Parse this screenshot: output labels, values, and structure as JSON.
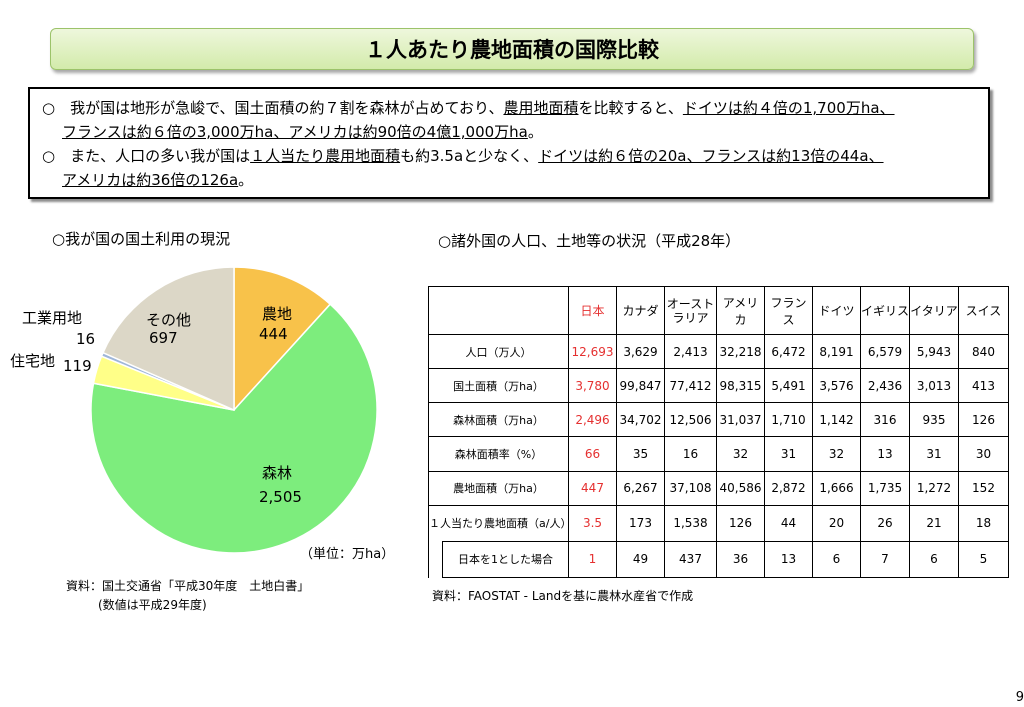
{
  "title": "１人あたり農地面積の国際比較",
  "summary": {
    "l1": {
      "a": "○　我が国は地形が急峻で、国土面積の約７割を森林が占めており、",
      "b": "農用地面積",
      "c": "を比較すると、",
      "d": "ドイツは約４倍の1,700万ha、"
    },
    "l2": {
      "a": "フランスは約６倍の3,000万ha、アメリカは約90倍の4億1,000万ha",
      "b": "。"
    },
    "l3": {
      "a": "○　また、人口の多い我が国は",
      "b": "１人当たり農用地面積",
      "c": "も約3.5aと少なく、",
      "d": "ドイツは約６倍の20a、フランスは約13倍の44a、"
    },
    "l4": {
      "a": "アメリカは約36倍の126a",
      "b": "。"
    }
  },
  "left": {
    "heading": "○我が国の国土利用の現況",
    "unit": "（単位：万ha）",
    "source1": "資料：国土交通省「平成30年度　土地白書」",
    "source2": "(数値は平成29年度)"
  },
  "chart_data": {
    "type": "pie",
    "unit": "万ha",
    "slices": [
      {
        "label": "農地",
        "value": 444,
        "color": "#f8c24a"
      },
      {
        "label": "森林",
        "value": 2505,
        "color": "#7ded7d"
      },
      {
        "label": "住宅地",
        "value": 119,
        "color": "#ffff88"
      },
      {
        "label": "工業用地",
        "value": 16,
        "color": "#9fb6d9"
      },
      {
        "label": "その他",
        "value": 697,
        "color": "#dcd7c7"
      }
    ],
    "labels": {
      "farm": "農地",
      "farm_v": "444",
      "forest": "森林",
      "forest_v": "2,505",
      "res": "住宅地",
      "res_v": "119",
      "ind": "工業用地",
      "ind_v": "16",
      "other": "その他",
      "other_v": "697"
    }
  },
  "right": {
    "heading": "○諸外国の人口、土地等の状況（平成28年）",
    "source": "資料：FAOSTAT - Landを基に農林水産省で作成"
  },
  "table": {
    "headers": [
      "日本",
      "カナダ",
      "オースト\nラリア",
      "アメリカ",
      "フランス",
      "ドイツ",
      "イギリス",
      "イタリア",
      "スイス"
    ],
    "rows": [
      {
        "label": "人口（万人）",
        "values": [
          "12,693",
          "3,629",
          "2,413",
          "32,218",
          "6,472",
          "8,191",
          "6,579",
          "5,943",
          "840"
        ]
      },
      {
        "label": "国土面積（万ha）",
        "values": [
          "3,780",
          "99,847",
          "77,412",
          "98,315",
          "5,491",
          "3,576",
          "2,436",
          "3,013",
          "413"
        ]
      },
      {
        "label": "森林面積（万ha）",
        "values": [
          "2,496",
          "34,702",
          "12,506",
          "31,037",
          "1,710",
          "1,142",
          "316",
          "935",
          "126"
        ]
      },
      {
        "label": "森林面積率（%）",
        "values": [
          "66",
          "35",
          "16",
          "32",
          "31",
          "32",
          "13",
          "31",
          "30"
        ]
      },
      {
        "label": "農地面積（万ha）",
        "values": [
          "447",
          "6,267",
          "37,108",
          "40,586",
          "2,872",
          "1,666",
          "1,735",
          "1,272",
          "152"
        ]
      },
      {
        "label": "１人当たり農地面積（a/人）",
        "values": [
          "3.5",
          "173",
          "1,538",
          "126",
          "44",
          "20",
          "26",
          "21",
          "18"
        ]
      },
      {
        "label": "日本を1とした場合",
        "values": [
          "1",
          "49",
          "437",
          "36",
          "13",
          "6",
          "7",
          "6",
          "5"
        ]
      }
    ]
  },
  "page_number": "9"
}
